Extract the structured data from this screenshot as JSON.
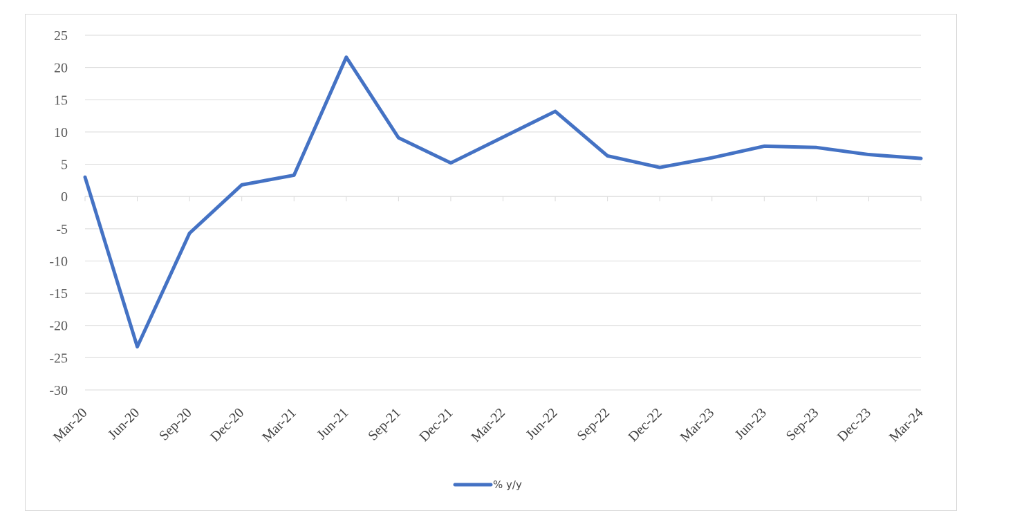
{
  "chart_data": {
    "type": "line",
    "title": "",
    "xlabel": "",
    "ylabel": "",
    "categories": [
      "Mar-20",
      "Jun-20",
      "Sep-20",
      "Dec-20",
      "Mar-21",
      "Jun-21",
      "Sep-21",
      "Dec-21",
      "Mar-22",
      "Jun-22",
      "Sep-22",
      "Dec-22",
      "Mar-23",
      "Jun-23",
      "Sep-23",
      "Dec-23",
      "Mar-24"
    ],
    "series": [
      {
        "name": "% y/y",
        "color": "#4472c4",
        "values": [
          3.0,
          -23.3,
          -5.7,
          1.8,
          3.3,
          21.6,
          9.1,
          5.2,
          9.2,
          13.2,
          6.3,
          4.5,
          6.0,
          7.8,
          7.6,
          6.5,
          5.9
        ]
      }
    ],
    "ylim": [
      -30,
      25
    ],
    "yticks": [
      25,
      20,
      15,
      10,
      5,
      0,
      -5,
      -10,
      -15,
      -20,
      -25,
      -30
    ],
    "grid": true,
    "legend_position": "bottom"
  }
}
